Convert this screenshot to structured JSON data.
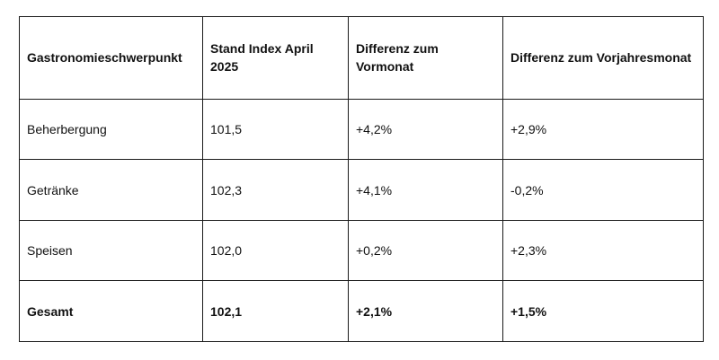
{
  "table": {
    "headers": [
      "Gastronomieschwerpunkt",
      "Stand Index April 2025",
      "Differenz zum Vormonat",
      "Differenz zum Vorjahresmonat"
    ],
    "rows": [
      [
        "Beherbergung",
        "101,5",
        "+4,2%",
        "+2,9%"
      ],
      [
        "Getränke",
        "102,3",
        "+4,1%",
        "-0,2%"
      ],
      [
        "Speisen",
        "102,0",
        "+0,2%",
        "+2,3%"
      ],
      [
        "Gesamt",
        "102,1",
        "+2,1%",
        "+1,5%"
      ]
    ]
  }
}
